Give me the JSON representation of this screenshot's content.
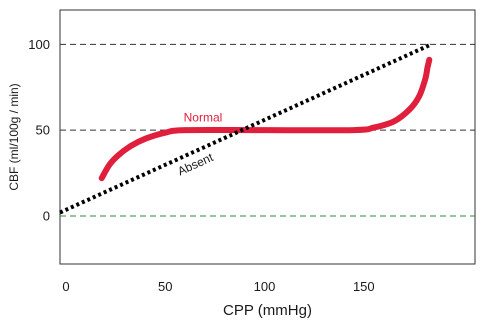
{
  "chart_data": {
    "type": "line",
    "xlabel": "CPP (mmHg)",
    "ylabel": "CBF  (ml/100g / min)",
    "x_ticks": [
      0,
      50,
      100,
      150
    ],
    "y_ticks": [
      0,
      50,
      100
    ],
    "xlim": [
      -3,
      206
    ],
    "ylim": [
      -28,
      120
    ],
    "grid": "horizontal dashed at y = 0, 50, 100",
    "reference_lines": [
      {
        "y": 100,
        "color": "#333333"
      },
      {
        "y": 50,
        "color": "#333333"
      },
      {
        "y": 0,
        "color": "#2e8b3e"
      }
    ],
    "series": [
      {
        "name": "Normal",
        "color": "#e01f3d",
        "style": "solid-thick",
        "x": [
          18,
          22,
          27,
          33,
          40,
          50,
          60,
          100,
          145,
          155,
          165,
          173,
          178,
          181,
          182,
          183
        ],
        "y": [
          22,
          30,
          36,
          41,
          45,
          48.5,
          50,
          50,
          50,
          51.5,
          55,
          62,
          70,
          80,
          86,
          91
        ]
      },
      {
        "name": "Absent",
        "color": "#000000",
        "style": "dotted",
        "x": [
          -3,
          184
        ],
        "y": [
          2,
          100
        ]
      }
    ]
  }
}
